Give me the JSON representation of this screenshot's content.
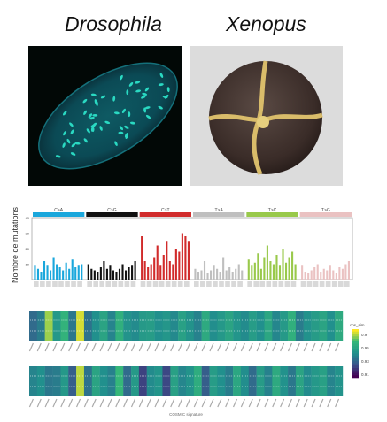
{
  "panels": {
    "left_title": "Drosophila",
    "right_title": "Xenopus",
    "left_image": "drosophila-embryo-fluorescence",
    "right_image": "xenopus-embryo-4-cell-stage"
  },
  "chart_data": [
    {
      "type": "bar",
      "ylabel": "Nombre de mutations",
      "groups": [
        {
          "name": "C>A",
          "color": "#1aa7dc",
          "values": [
            9,
            7,
            5,
            12,
            9,
            6,
            14,
            10,
            8,
            6,
            11,
            7,
            13,
            8,
            9,
            10
          ]
        },
        {
          "name": "C>G",
          "color": "#111111",
          "values": [
            10,
            7,
            6,
            5,
            8,
            12,
            7,
            9,
            6,
            5,
            7,
            10,
            6,
            8,
            9,
            12
          ]
        },
        {
          "name": "C>T",
          "color": "#d12b2b",
          "values": [
            28,
            12,
            8,
            10,
            14,
            22,
            9,
            16,
            25,
            12,
            10,
            20,
            18,
            30,
            28,
            25
          ]
        },
        {
          "name": "T>A",
          "color": "#bfbfbf",
          "values": [
            7,
            5,
            6,
            12,
            4,
            6,
            9,
            7,
            5,
            14,
            6,
            8,
            5,
            7,
            10,
            6
          ]
        },
        {
          "name": "T>C",
          "color": "#99c94b",
          "values": [
            13,
            9,
            11,
            17,
            7,
            14,
            22,
            12,
            10,
            16,
            9,
            20,
            11,
            14,
            18,
            10
          ]
        },
        {
          "name": "T>G",
          "color": "#eac2c2",
          "values": [
            9,
            5,
            4,
            6,
            8,
            10,
            5,
            7,
            6,
            9,
            6,
            4,
            8,
            7,
            10,
            12
          ]
        }
      ],
      "ytick_labels": [
        "40",
        "30",
        "20",
        "10"
      ]
    },
    {
      "type": "heatmap",
      "legend_title": "cos_sim",
      "legend_ticks": [
        "0.97",
        "0.95",
        "0.93",
        "0.91"
      ],
      "colors": [
        "#440154",
        "#31688e",
        "#21908d",
        "#35b779",
        "#fde725"
      ],
      "top_block": [
        0.35,
        0.42,
        0.88,
        0.55,
        0.72,
        0.4,
        0.95,
        0.38,
        0.5,
        0.62,
        0.45,
        0.7,
        0.52,
        0.48,
        0.56,
        0.58,
        0.5,
        0.54,
        0.47,
        0.6,
        0.52,
        0.44,
        0.66,
        0.49,
        0.55,
        0.62,
        0.53,
        0.48,
        0.58,
        0.5,
        0.64,
        0.46,
        0.56,
        0.7,
        0.42,
        0.51,
        0.57,
        0.62,
        0.5,
        0.66
      ],
      "bottom_block": [
        0.45,
        0.5,
        0.4,
        0.42,
        0.55,
        0.3,
        0.92,
        0.38,
        0.62,
        0.5,
        0.44,
        0.75,
        0.35,
        0.56,
        0.2,
        0.48,
        0.53,
        0.22,
        0.6,
        0.46,
        0.52,
        0.68,
        0.3,
        0.58,
        0.5,
        0.42,
        0.64,
        0.49,
        0.35,
        0.57,
        0.44,
        0.66,
        0.51,
        0.4,
        0.62,
        0.48,
        0.55,
        0.6,
        0.45,
        0.52
      ],
      "xlabel": "COSMIC signature"
    }
  ]
}
